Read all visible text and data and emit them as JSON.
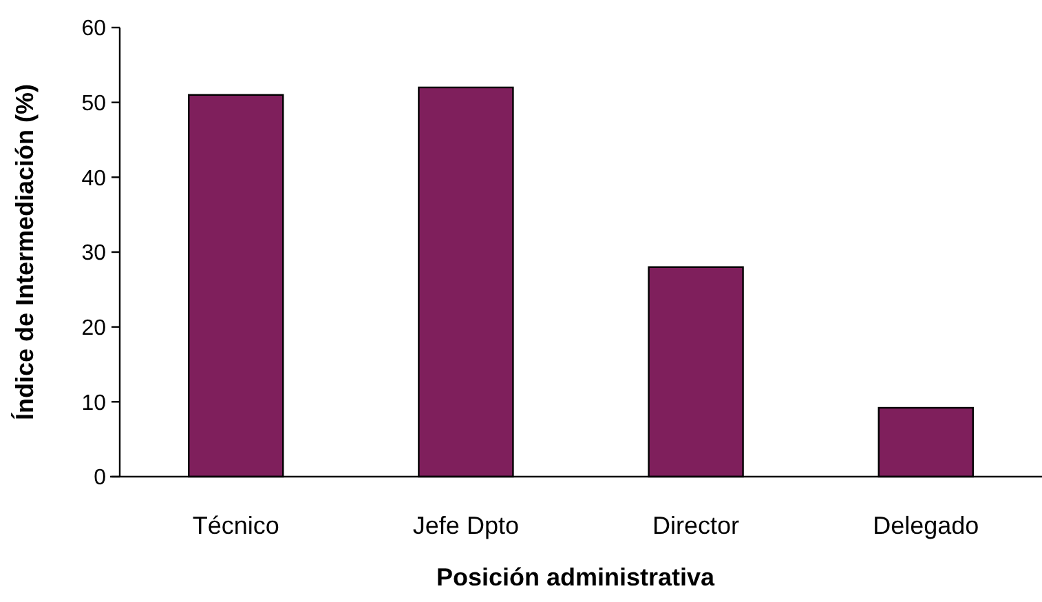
{
  "chart_data": {
    "type": "bar",
    "xlabel": "Posición administrativa",
    "ylabel": "Índice de Intermediación (%)",
    "categories": [
      "Técnico",
      "Jefe Dpto",
      "Director",
      "Delegado"
    ],
    "values": [
      51,
      52,
      28,
      9.2
    ],
    "color": "#7f1f5c",
    "ylim": [
      0,
      60
    ],
    "yticks": [
      0,
      10,
      20,
      30,
      40,
      50,
      60
    ]
  }
}
